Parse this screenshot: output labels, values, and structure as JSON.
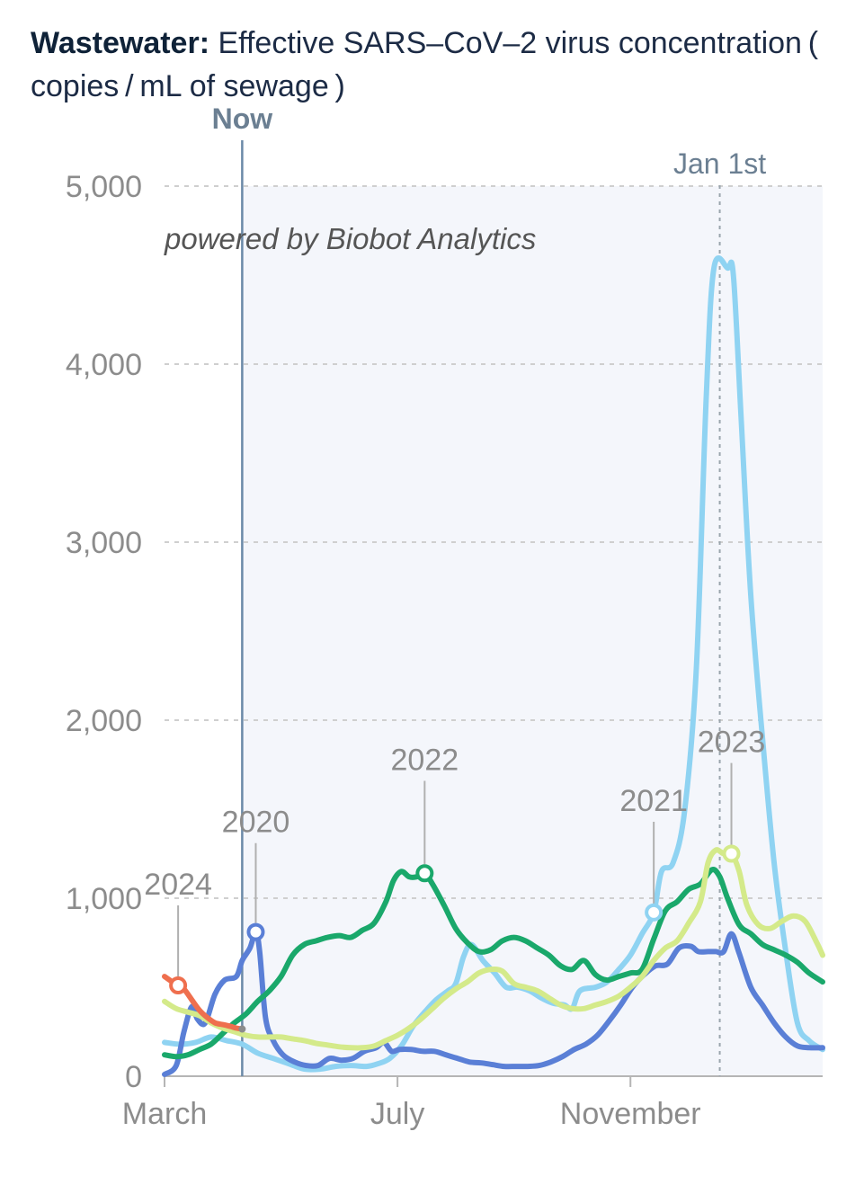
{
  "title": {
    "bold": "Wastewater:",
    "rest": " Effective SARS–CoV–2 virus concentration ( copies / mL of sewage )"
  },
  "now_label": "Now",
  "jan_label": "Jan 1st",
  "credit": "powered by Biobot Analytics",
  "colors": {
    "2020": "#5a7fd6",
    "2021": "#8fd3f2",
    "2022": "#1aa86b",
    "2023": "#d4ea8a",
    "2024": "#ef6f4e",
    "panel": "#f4f6fb",
    "grid": "#cfcfcf",
    "now_line": "#6b8aa8"
  },
  "chart_data": {
    "type": "line",
    "title": "Wastewater: Effective SARS-CoV-2 virus concentration (copies / mL of sewage)",
    "x_unit": "days since March 1 (seasonal year)",
    "xlim": [
      0,
      339
    ],
    "ylim": [
      0,
      5000
    ],
    "x_ticks": [
      {
        "x": 0,
        "label": "March"
      },
      {
        "x": 120,
        "label": "July"
      },
      {
        "x": 240,
        "label": "November"
      }
    ],
    "y_ticks": [
      {
        "y": 0,
        "label": "0"
      },
      {
        "y": 1000,
        "label": "1,000"
      },
      {
        "y": 2000,
        "label": "2,000"
      },
      {
        "y": 3000,
        "label": "3,000"
      },
      {
        "y": 4000,
        "label": "4,000"
      },
      {
        "y": 5000,
        "label": "5,000"
      }
    ],
    "now_x": 40,
    "jan1_x": 286,
    "grid": true,
    "series": [
      {
        "name": "2020",
        "color": "#5a7fd6",
        "marker": {
          "x": 47,
          "y": 810
        },
        "label_pos": {
          "x": 47,
          "y": 1370
        },
        "points": [
          [
            0,
            10
          ],
          [
            6,
            60
          ],
          [
            10,
            250
          ],
          [
            14,
            390
          ],
          [
            17,
            320
          ],
          [
            21,
            300
          ],
          [
            26,
            460
          ],
          [
            31,
            540
          ],
          [
            37,
            560
          ],
          [
            40,
            650
          ],
          [
            44,
            720
          ],
          [
            47,
            810
          ],
          [
            49,
            700
          ],
          [
            52,
            330
          ],
          [
            56,
            200
          ],
          [
            61,
            120
          ],
          [
            67,
            80
          ],
          [
            73,
            60
          ],
          [
            79,
            60
          ],
          [
            85,
            100
          ],
          [
            91,
            90
          ],
          [
            97,
            100
          ],
          [
            103,
            140
          ],
          [
            109,
            160
          ],
          [
            113,
            190
          ],
          [
            117,
            140
          ],
          [
            121,
            150
          ],
          [
            127,
            150
          ],
          [
            133,
            140
          ],
          [
            139,
            140
          ],
          [
            145,
            120
          ],
          [
            151,
            100
          ],
          [
            157,
            80
          ],
          [
            163,
            75
          ],
          [
            169,
            65
          ],
          [
            175,
            55
          ],
          [
            181,
            55
          ],
          [
            187,
            55
          ],
          [
            193,
            60
          ],
          [
            199,
            80
          ],
          [
            205,
            110
          ],
          [
            211,
            150
          ],
          [
            217,
            180
          ],
          [
            223,
            230
          ],
          [
            229,
            310
          ],
          [
            235,
            400
          ],
          [
            241,
            500
          ],
          [
            247,
            570
          ],
          [
            253,
            620
          ],
          [
            259,
            630
          ],
          [
            265,
            720
          ],
          [
            271,
            730
          ],
          [
            275,
            700
          ],
          [
            280,
            700
          ],
          [
            284,
            700
          ],
          [
            288,
            700
          ],
          [
            292,
            800
          ],
          [
            296,
            690
          ],
          [
            302,
            500
          ],
          [
            308,
            400
          ],
          [
            314,
            300
          ],
          [
            320,
            220
          ],
          [
            326,
            170
          ],
          [
            332,
            160
          ],
          [
            339,
            160
          ]
        ]
      },
      {
        "name": "2021",
        "color": "#8fd3f2",
        "marker": {
          "x": 252,
          "y": 920
        },
        "label_pos": {
          "x": 252,
          "y": 1490
        },
        "points": [
          [
            0,
            190
          ],
          [
            8,
            180
          ],
          [
            16,
            190
          ],
          [
            24,
            220
          ],
          [
            32,
            200
          ],
          [
            40,
            180
          ],
          [
            48,
            130
          ],
          [
            56,
            100
          ],
          [
            64,
            70
          ],
          [
            72,
            40
          ],
          [
            80,
            40
          ],
          [
            88,
            55
          ],
          [
            96,
            60
          ],
          [
            104,
            55
          ],
          [
            110,
            70
          ],
          [
            116,
            100
          ],
          [
            122,
            170
          ],
          [
            128,
            280
          ],
          [
            134,
            360
          ],
          [
            140,
            430
          ],
          [
            146,
            480
          ],
          [
            150,
            520
          ],
          [
            154,
            670
          ],
          [
            158,
            740
          ],
          [
            164,
            650
          ],
          [
            170,
            580
          ],
          [
            176,
            500
          ],
          [
            182,
            500
          ],
          [
            188,
            480
          ],
          [
            194,
            440
          ],
          [
            200,
            410
          ],
          [
            206,
            400
          ],
          [
            210,
            380
          ],
          [
            214,
            480
          ],
          [
            222,
            500
          ],
          [
            228,
            530
          ],
          [
            234,
            600
          ],
          [
            240,
            680
          ],
          [
            246,
            800
          ],
          [
            252,
            920
          ],
          [
            256,
            1150
          ],
          [
            262,
            1200
          ],
          [
            268,
            1500
          ],
          [
            274,
            2300
          ],
          [
            279,
            3800
          ],
          [
            283,
            4540
          ],
          [
            290,
            4540
          ],
          [
            293,
            4500
          ],
          [
            297,
            3700
          ],
          [
            302,
            2700
          ],
          [
            308,
            1900
          ],
          [
            314,
            1200
          ],
          [
            320,
            700
          ],
          [
            326,
            300
          ],
          [
            332,
            200
          ],
          [
            339,
            150
          ]
        ]
      },
      {
        "name": "2022",
        "color": "#1aa86b",
        "marker": {
          "x": 134,
          "y": 1140
        },
        "label_pos": {
          "x": 134,
          "y": 1720
        },
        "points": [
          [
            0,
            120
          ],
          [
            6,
            110
          ],
          [
            12,
            120
          ],
          [
            18,
            150
          ],
          [
            24,
            180
          ],
          [
            30,
            240
          ],
          [
            36,
            300
          ],
          [
            42,
            350
          ],
          [
            48,
            420
          ],
          [
            54,
            480
          ],
          [
            60,
            560
          ],
          [
            66,
            680
          ],
          [
            72,
            740
          ],
          [
            78,
            760
          ],
          [
            84,
            780
          ],
          [
            90,
            790
          ],
          [
            96,
            780
          ],
          [
            102,
            820
          ],
          [
            108,
            860
          ],
          [
            114,
            980
          ],
          [
            118,
            1100
          ],
          [
            122,
            1150
          ],
          [
            126,
            1120
          ],
          [
            130,
            1120
          ],
          [
            134,
            1140
          ],
          [
            138,
            1080
          ],
          [
            144,
            960
          ],
          [
            150,
            830
          ],
          [
            156,
            750
          ],
          [
            162,
            700
          ],
          [
            168,
            710
          ],
          [
            174,
            760
          ],
          [
            180,
            780
          ],
          [
            186,
            760
          ],
          [
            192,
            720
          ],
          [
            198,
            680
          ],
          [
            204,
            620
          ],
          [
            210,
            600
          ],
          [
            216,
            650
          ],
          [
            222,
            570
          ],
          [
            228,
            540
          ],
          [
            234,
            560
          ],
          [
            240,
            580
          ],
          [
            246,
            600
          ],
          [
            252,
            770
          ],
          [
            258,
            930
          ],
          [
            264,
            980
          ],
          [
            270,
            1050
          ],
          [
            276,
            1080
          ],
          [
            282,
            1160
          ],
          [
            286,
            1120
          ],
          [
            290,
            1000
          ],
          [
            296,
            850
          ],
          [
            302,
            800
          ],
          [
            308,
            740
          ],
          [
            314,
            710
          ],
          [
            320,
            680
          ],
          [
            326,
            640
          ],
          [
            332,
            580
          ],
          [
            339,
            530
          ]
        ]
      },
      {
        "name": "2023",
        "color": "#d4ea8a",
        "marker": {
          "x": 292,
          "y": 1250
        },
        "label_pos": {
          "x": 292,
          "y": 1820
        },
        "points": [
          [
            0,
            420
          ],
          [
            6,
            380
          ],
          [
            12,
            360
          ],
          [
            18,
            340
          ],
          [
            24,
            300
          ],
          [
            30,
            270
          ],
          [
            36,
            250
          ],
          [
            42,
            230
          ],
          [
            48,
            220
          ],
          [
            54,
            220
          ],
          [
            60,
            220
          ],
          [
            66,
            210
          ],
          [
            72,
            200
          ],
          [
            78,
            185
          ],
          [
            84,
            175
          ],
          [
            90,
            165
          ],
          [
            96,
            160
          ],
          [
            102,
            160
          ],
          [
            108,
            170
          ],
          [
            114,
            200
          ],
          [
            120,
            230
          ],
          [
            126,
            270
          ],
          [
            132,
            320
          ],
          [
            138,
            380
          ],
          [
            144,
            440
          ],
          [
            150,
            490
          ],
          [
            156,
            530
          ],
          [
            162,
            580
          ],
          [
            168,
            600
          ],
          [
            174,
            590
          ],
          [
            180,
            520
          ],
          [
            186,
            500
          ],
          [
            192,
            480
          ],
          [
            198,
            440
          ],
          [
            204,
            400
          ],
          [
            210,
            380
          ],
          [
            216,
            380
          ],
          [
            222,
            400
          ],
          [
            228,
            420
          ],
          [
            234,
            450
          ],
          [
            240,
            500
          ],
          [
            246,
            560
          ],
          [
            252,
            650
          ],
          [
            258,
            720
          ],
          [
            264,
            760
          ],
          [
            270,
            860
          ],
          [
            276,
            980
          ],
          [
            280,
            1200
          ],
          [
            284,
            1270
          ],
          [
            288,
            1250
          ],
          [
            292,
            1250
          ],
          [
            296,
            1150
          ],
          [
            300,
            960
          ],
          [
            306,
            850
          ],
          [
            312,
            830
          ],
          [
            318,
            870
          ],
          [
            324,
            900
          ],
          [
            330,
            870
          ],
          [
            336,
            750
          ],
          [
            339,
            680
          ]
        ]
      },
      {
        "name": "2024",
        "color": "#ef6f4e",
        "marker": {
          "x": 7,
          "y": 510
        },
        "label_pos": {
          "x": 7,
          "y": 1020
        },
        "points": [
          [
            0,
            560
          ],
          [
            4,
            530
          ],
          [
            7,
            510
          ],
          [
            10,
            490
          ],
          [
            14,
            430
          ],
          [
            18,
            370
          ],
          [
            22,
            330
          ],
          [
            26,
            300
          ],
          [
            30,
            290
          ],
          [
            34,
            280
          ],
          [
            37,
            270
          ],
          [
            40,
            265
          ]
        ]
      }
    ]
  }
}
